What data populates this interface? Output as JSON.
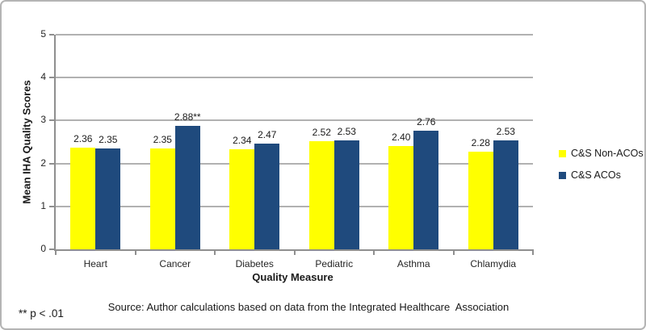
{
  "chart_data": {
    "type": "bar",
    "title": "",
    "categories": [
      "Heart",
      "Cancer",
      "Diabetes",
      "Pediatric",
      "Asthma",
      "Chlamydia"
    ],
    "series": [
      {
        "name": "C&S Non-ACOs",
        "color": "#FFFF00",
        "values": [
          2.36,
          2.35,
          2.34,
          2.52,
          2.4,
          2.28
        ],
        "labels": [
          "2.36",
          "2.35",
          "2.34",
          "2.52",
          "2.40",
          "2.28"
        ]
      },
      {
        "name": "C&S ACOs",
        "color": "#1F4A7D",
        "values": [
          2.35,
          2.88,
          2.47,
          2.53,
          2.76,
          2.53
        ],
        "labels": [
          "2.35",
          "2.88**",
          "2.47",
          "2.53",
          "2.76",
          "2.53"
        ]
      }
    ],
    "xlabel": "Quality Measure",
    "ylabel": "Mean IHA Quality Scores",
    "ylim": [
      0,
      5
    ],
    "ytick_interval": 1,
    "yticks": [
      "0",
      "1",
      "2",
      "3",
      "4",
      "5"
    ],
    "grid": "horizontal",
    "legend_position": "right"
  },
  "source": "Source: Author calculations based on data from the Integrated Healthcare  Association",
  "footnote": "** p < .01"
}
